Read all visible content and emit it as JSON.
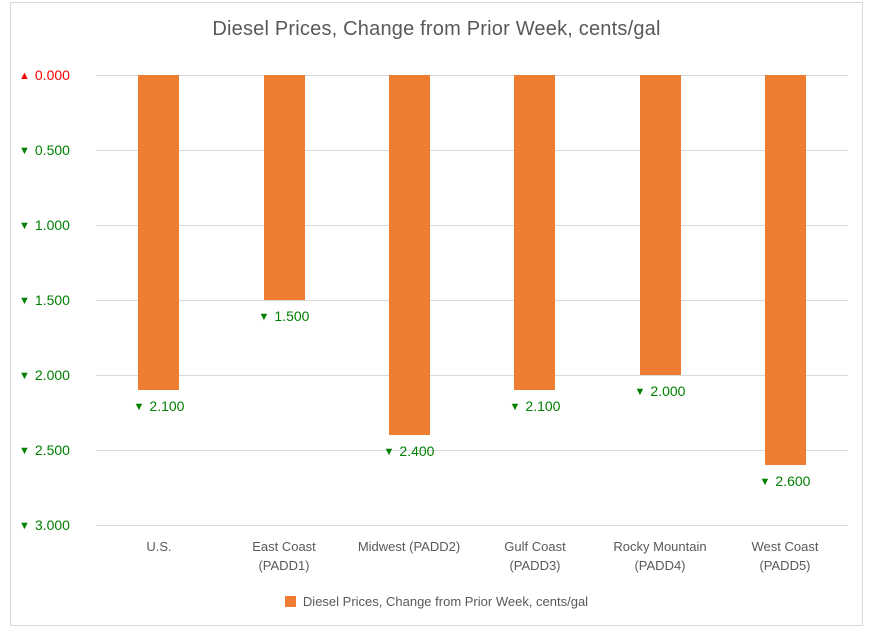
{
  "window": {
    "background": "#FFFFFF",
    "border_color": "#D9D9D9"
  },
  "chart_data": {
    "type": "bar",
    "title": "Diesel Prices, Change from Prior Week, cents/gal",
    "orientation": "vertical-downward",
    "categories": [
      "U.S.",
      "East Coast (PADD1)",
      "Midwest (PADD2)",
      "Gulf Coast (PADD3)",
      "Rocky Mountain (PADD4)",
      "West Coast (PADD5)"
    ],
    "category_display_lines": [
      [
        "U.S."
      ],
      [
        "East Coast",
        "(PADD1)"
      ],
      [
        "Midwest (PADD2)"
      ],
      [
        "Gulf Coast",
        "(PADD3)"
      ],
      [
        "Rocky Mountain",
        "(PADD4)"
      ],
      [
        "West Coast",
        "(PADD5)"
      ]
    ],
    "category_keys": [
      "us",
      "east-coast-padd1",
      "midwest-padd2",
      "gulf-coast-padd3",
      "rocky-mountain-padd4",
      "west-coast-padd5"
    ],
    "series": [
      {
        "name": "Diesel Prices, Change from Prior Week, cents/gal",
        "values": [
          2.1,
          1.5,
          2.4,
          2.1,
          2.0,
          2.6
        ],
        "value_labels": [
          "2.100",
          "1.500",
          "2.400",
          "2.100",
          "2.000",
          "2.600"
        ],
        "label_direction": "down",
        "color": "#ED7D31"
      }
    ],
    "y_axis": {
      "min": 0,
      "max": 3.0,
      "step": 0.5,
      "grid": true,
      "ticks": [
        {
          "label": "0.000",
          "direction": "up"
        },
        {
          "label": "0.500",
          "direction": "down"
        },
        {
          "label": "1.000",
          "direction": "down"
        },
        {
          "label": "1.500",
          "direction": "down"
        },
        {
          "label": "2.000",
          "direction": "down"
        },
        {
          "label": "2.500",
          "direction": "down"
        },
        {
          "label": "3.000",
          "direction": "down"
        }
      ]
    },
    "legend": {
      "position": "bottom",
      "label": "Diesel Prices, Change from Prior Week, cents/gal",
      "swatch_color": "#ED7D31"
    },
    "glyphs": {
      "up_triangle": "▲",
      "down_triangle": "▼"
    },
    "colors": {
      "bar": "#ED7D31",
      "increase_text": "#FF0000",
      "decrease_text": "#008000",
      "axis_text": "#595959",
      "gridline": "#D9D9D9"
    }
  }
}
